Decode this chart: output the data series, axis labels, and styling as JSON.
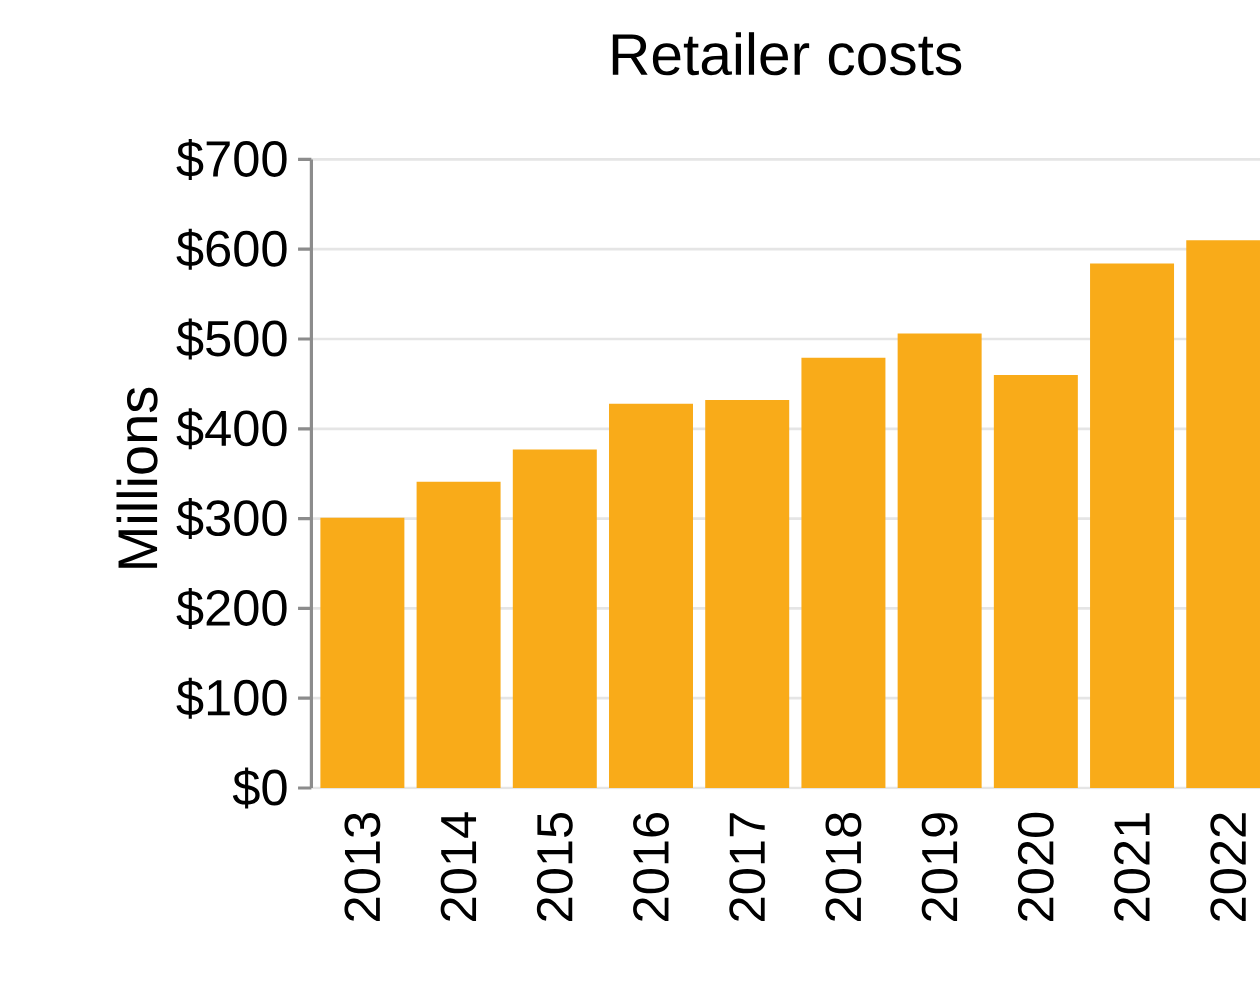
{
  "chart_data": {
    "type": "bar",
    "title": "Retailer costs",
    "ylabel": "Millions",
    "categories": [
      "2013",
      "2014",
      "2015",
      "2016",
      "2017",
      "2018",
      "2019",
      "2020",
      "2021",
      "2022"
    ],
    "values": [
      301,
      341,
      377,
      428,
      432,
      479,
      506,
      460,
      584,
      610
    ],
    "color": "#f9ab19",
    "ylim": [
      0,
      700
    ],
    "yticks": [
      {
        "value": 0,
        "label": "$0"
      },
      {
        "value": 100,
        "label": "$100"
      },
      {
        "value": 200,
        "label": "$200"
      },
      {
        "value": 300,
        "label": "$300"
      },
      {
        "value": 400,
        "label": "$400"
      },
      {
        "value": 500,
        "label": "$500"
      },
      {
        "value": 600,
        "label": "$600"
      },
      {
        "value": 700,
        "label": "$700"
      }
    ],
    "grid": "y"
  }
}
